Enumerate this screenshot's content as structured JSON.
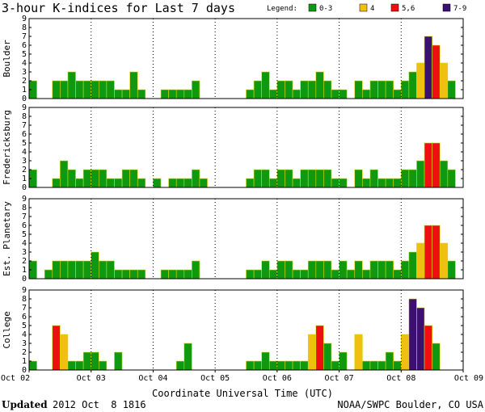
{
  "chart_data": {
    "type": "bar",
    "title": "3-hour K-indices for Last 7 days",
    "legend": {
      "label": "Legend:",
      "entries": [
        {
          "label": "0-3",
          "color": "#109910"
        },
        {
          "label": "4",
          "color": "#f0c010"
        },
        {
          "label": "5,6",
          "color": "#ee1010"
        },
        {
          "label": "7-9",
          "color": "#3c1070"
        }
      ]
    },
    "ylim": [
      0,
      9
    ],
    "yticks": [
      0,
      1,
      2,
      3,
      4,
      5,
      6,
      7,
      8,
      9
    ],
    "xlabel": "Coordinate Universal Time (UTC)",
    "date_labels": [
      "Oct 02",
      "Oct 03",
      "Oct 04",
      "Oct 05",
      "Oct 06",
      "Oct 07",
      "Oct 08",
      "Oct 09"
    ],
    "panels": [
      {
        "name": "Boulder",
        "values": [
          2,
          0,
          0,
          2,
          2,
          3,
          2,
          2,
          2,
          2,
          2,
          1,
          1,
          3,
          1,
          0,
          0,
          1,
          1,
          1,
          1,
          2,
          0,
          0,
          0,
          0,
          0,
          0,
          1,
          2,
          3,
          1,
          2,
          2,
          1,
          2,
          2,
          3,
          2,
          1,
          1,
          0,
          2,
          1,
          2,
          2,
          2,
          1,
          2,
          3,
          4,
          7,
          6,
          4,
          2,
          0,
          0
        ]
      },
      {
        "name": "Fredericksburg",
        "values": [
          2,
          0,
          0,
          1,
          3,
          2,
          1,
          2,
          2,
          2,
          1,
          1,
          2,
          2,
          1,
          0,
          1,
          0,
          1,
          1,
          1,
          2,
          1,
          0,
          0,
          0,
          0,
          0,
          1,
          2,
          2,
          1,
          2,
          2,
          1,
          2,
          2,
          2,
          2,
          1,
          1,
          0,
          2,
          1,
          2,
          1,
          1,
          1,
          2,
          2,
          3,
          5,
          5,
          3,
          2,
          0,
          0
        ]
      },
      {
        "name": "Est. Planetary",
        "values": [
          2,
          0,
          1,
          2,
          2,
          2,
          2,
          2,
          3,
          2,
          2,
          1,
          1,
          1,
          1,
          0,
          0,
          1,
          1,
          1,
          1,
          2,
          0,
          0,
          0,
          0,
          0,
          0,
          1,
          1,
          2,
          1,
          2,
          2,
          1,
          1,
          2,
          2,
          2,
          1,
          2,
          1,
          2,
          1,
          2,
          2,
          2,
          1,
          2,
          3,
          4,
          6,
          6,
          4,
          2,
          0,
          0
        ]
      },
      {
        "name": "College",
        "values": [
          1,
          0,
          0,
          5,
          4,
          1,
          1,
          2,
          2,
          1,
          0,
          2,
          0,
          0,
          0,
          0,
          0,
          0,
          0,
          1,
          3,
          0,
          0,
          0,
          0,
          0,
          0,
          0,
          1,
          1,
          2,
          1,
          1,
          1,
          1,
          1,
          4,
          5,
          3,
          1,
          2,
          0,
          4,
          1,
          1,
          1,
          2,
          1,
          4,
          8,
          7,
          5,
          3,
          0,
          0,
          0,
          0
        ]
      }
    ]
  },
  "footer": {
    "updated_label": "Updated",
    "updated_value": "2012 Oct  8 1816",
    "source": "NOAA/SWPC Boulder, CO USA"
  }
}
